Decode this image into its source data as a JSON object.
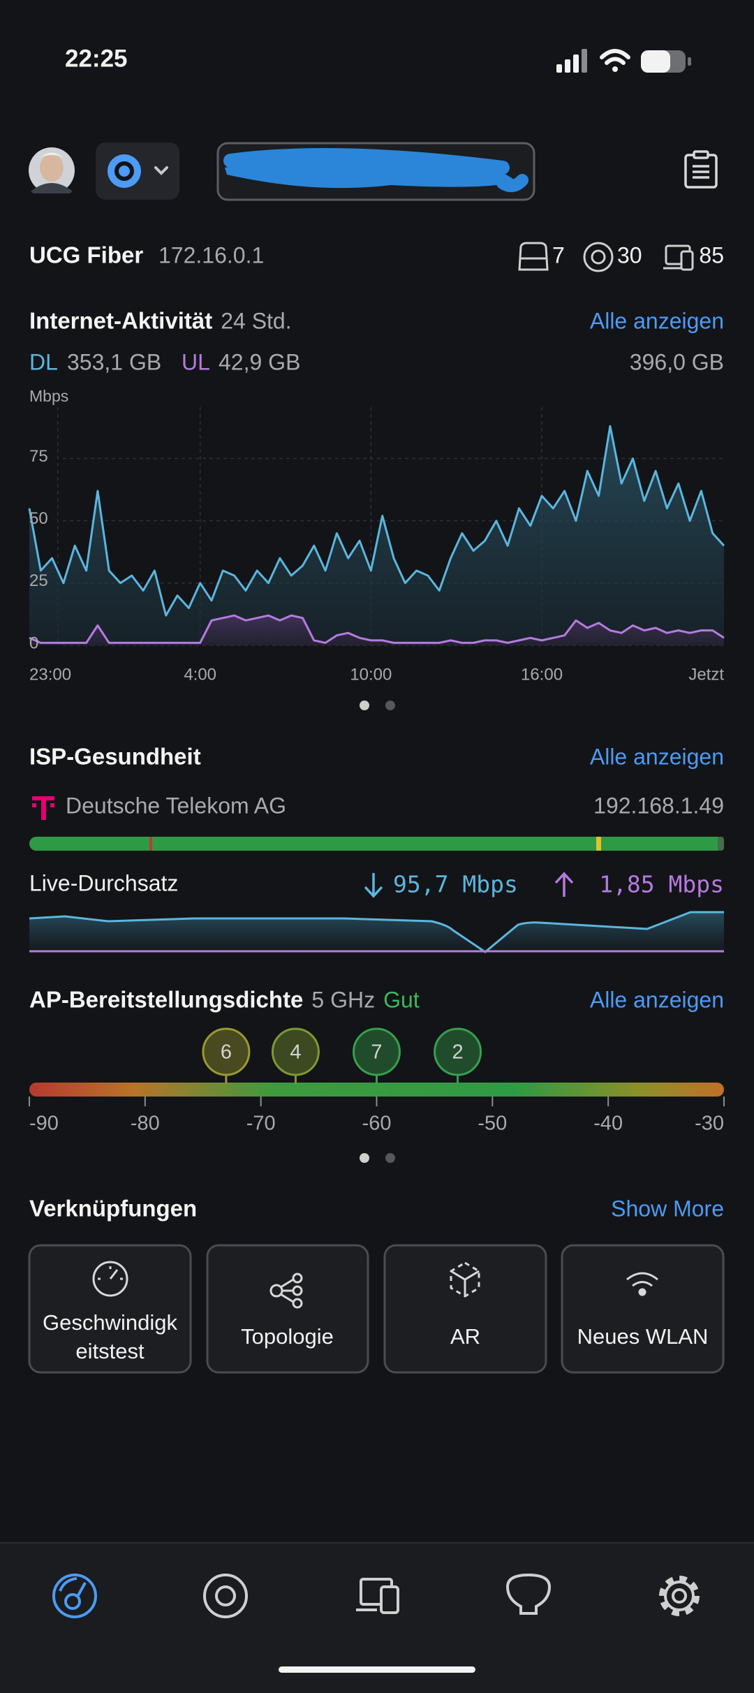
{
  "status_bar": {
    "time": "22:25"
  },
  "gateway": {
    "name": "UCG Fiber",
    "ip": "172.16.0.1",
    "devices": 7,
    "access_points": 30,
    "clients": 85
  },
  "internet_activity": {
    "title": "Internet-Aktivität",
    "period": "24 Std.",
    "link": "Alle anzeigen",
    "dl_total": "353,1 GB",
    "ul_total": "42,9 GB",
    "total": "396,0 GB",
    "chart": {
      "type": "line",
      "y_label": "Mbps",
      "x": [
        -1,
        -0.6,
        -0.2,
        0.2,
        0.6,
        1,
        1.4,
        1.8,
        2.2,
        2.6,
        3,
        3.4,
        3.8,
        4.2,
        4.6,
        5,
        5.4,
        5.8,
        6.2,
        6.6,
        7,
        7.4,
        7.8,
        8.2,
        8.6,
        9,
        9.4,
        9.8,
        10.2,
        10.6,
        11,
        11.4,
        11.8,
        12.2,
        12.6,
        13,
        13.4,
        13.8,
        14.2,
        14.6,
        15,
        15.4,
        15.8,
        16.2,
        16.6,
        17,
        17.4,
        17.8,
        18.2,
        18.6,
        19,
        19.4,
        19.8,
        20.2,
        20.6,
        21,
        21.4,
        21.8,
        22.2,
        22.6,
        23,
        23.4
      ],
      "xlim": [
        -1,
        23.4
      ],
      "xticks": [
        {
          "value": 0,
          "label": "23:00"
        },
        {
          "value": 5,
          "label": "4:00"
        },
        {
          "value": 11,
          "label": "10:00"
        },
        {
          "value": 17,
          "label": "16:00"
        },
        {
          "value": 23.4,
          "label": "Jetzt"
        }
      ],
      "ylim": [
        0,
        90
      ],
      "yticks": [
        0,
        25,
        50,
        75
      ],
      "grid": true,
      "series": [
        {
          "name": "DL",
          "color": "#5bb6df",
          "values": [
            55,
            30,
            35,
            25,
            40,
            30,
            62,
            30,
            25,
            28,
            22,
            30,
            12,
            20,
            15,
            25,
            18,
            30,
            28,
            22,
            30,
            25,
            35,
            28,
            32,
            40,
            30,
            45,
            35,
            42,
            30,
            52,
            35,
            25,
            30,
            28,
            22,
            35,
            45,
            38,
            42,
            50,
            40,
            55,
            48,
            60,
            55,
            62,
            50,
            70,
            60,
            88,
            65,
            75,
            58,
            70,
            55,
            65,
            50,
            62,
            45,
            40
          ]
        },
        {
          "name": "UL",
          "color": "#b57be0",
          "values": [
            3,
            1,
            1,
            1,
            1,
            1,
            8,
            1,
            1,
            1,
            1,
            1,
            1,
            1,
            1,
            1,
            10,
            11,
            12,
            10,
            11,
            12,
            10,
            12,
            11,
            2,
            1,
            4,
            5,
            3,
            2,
            2,
            1,
            1,
            1,
            1,
            1,
            2,
            1,
            1,
            2,
            2,
            1,
            2,
            3,
            2,
            3,
            4,
            10,
            7,
            9,
            6,
            5,
            8,
            6,
            7,
            5,
            6,
            5,
            6,
            6,
            3
          ]
        }
      ]
    }
  },
  "isp_health": {
    "title": "ISP-Gesundheit",
    "link": "Alle anzeigen",
    "provider": "Deutsche Telekom AG",
    "ip": "192.168.1.49",
    "live_title": "Live-Durchsatz",
    "download": "95,7 Mbps",
    "upload": "1,85 Mbps"
  },
  "ap_density": {
    "title": "AP-Bereitstellungsdichte",
    "band": "5 GHz",
    "rating": "Gut",
    "link": "Alle anzeigen",
    "scale": {
      "xlim": [
        -90,
        -30
      ],
      "xticks": [
        -90,
        -80,
        -70,
        -60,
        -50,
        -40,
        -30
      ],
      "markers": [
        {
          "value": -73,
          "count": 6,
          "color": "#9a9a2e"
        },
        {
          "value": -67,
          "count": 4,
          "color": "#7c9a33"
        },
        {
          "value": -60,
          "count": 7,
          "color": "#35a04e"
        },
        {
          "value": -53,
          "count": 2,
          "color": "#35a04e"
        }
      ]
    }
  },
  "shortcuts": {
    "title": "Verknüpfungen",
    "link": "Show More",
    "items": [
      "Geschwindigkeitstest",
      "Topologie",
      "AR",
      "Neues WLAN"
    ]
  }
}
